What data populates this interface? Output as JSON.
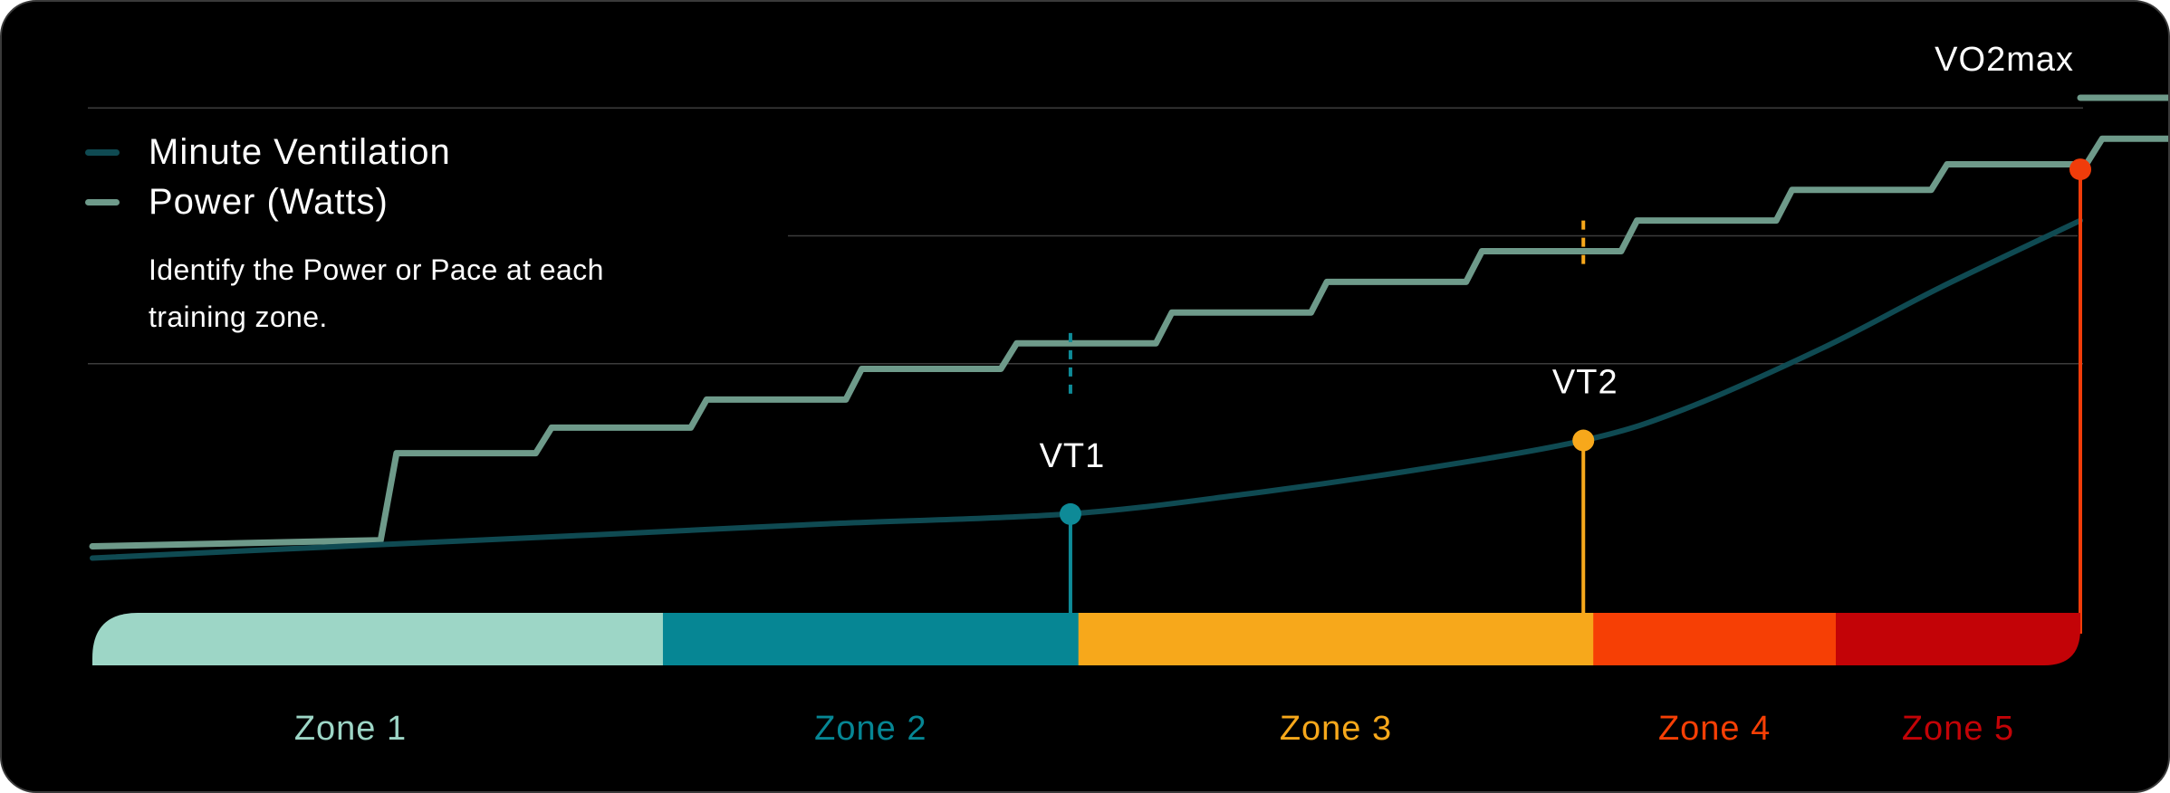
{
  "chart_data": {
    "type": "line",
    "title": "",
    "xlabel": "",
    "ylabel": "",
    "xlim": [
      0,
      100
    ],
    "ylim": [
      0,
      100
    ],
    "gridlines_y": [
      48,
      73,
      98
    ],
    "grid_partial_y": 73,
    "series": [
      {
        "name": "Minute Ventilation",
        "color": "#0f4a52",
        "points": [
          [
            0,
            10
          ],
          [
            12,
            12.2
          ],
          [
            25,
            14.5
          ],
          [
            37,
            16.7
          ],
          [
            49,
            18.6
          ],
          [
            58,
            22.5
          ],
          [
            67,
            27.5
          ],
          [
            75,
            33
          ],
          [
            80,
            39
          ],
          [
            87,
            51
          ],
          [
            93,
            63
          ],
          [
            100,
            76
          ]
        ]
      },
      {
        "name": "Power (Watts)",
        "color": "#6e9a8a",
        "step_width": 7.8,
        "steps": [
          13.5,
          30.5,
          35.5,
          41,
          47,
          52,
          58,
          64,
          70,
          76,
          82,
          87,
          92,
          96,
          100
        ],
        "tail_x": 100
      }
    ],
    "thresholds": [
      {
        "label": "VT1",
        "x": 49.2,
        "y": 18.6,
        "color": "#0e8a97",
        "dash_from": 41,
        "dash_to": 54
      },
      {
        "label": "VT2",
        "x": 75.0,
        "y": 33.0,
        "color": "#f7a81b",
        "dash_from": 67.5,
        "dash_to": 76
      },
      {
        "label": "VO2max",
        "x": 100,
        "y": 86,
        "color": "#f03c0a"
      }
    ],
    "zones": [
      {
        "label": "Zone 1",
        "from": 0,
        "to": 28.7,
        "color": "#9dd6c6"
      },
      {
        "label": "Zone 2",
        "from": 28.7,
        "to": 49.6,
        "color": "#068694"
      },
      {
        "label": "Zone 3",
        "from": 49.6,
        "to": 75.5,
        "color": "#f7a81b"
      },
      {
        "label": "Zone 4",
        "from": 75.5,
        "to": 87.7,
        "color": "#f63f05"
      },
      {
        "label": "Zone 5",
        "from": 87.7,
        "to": 100,
        "color": "#c30307"
      }
    ],
    "legend_position": "top-left"
  },
  "note": "Identify the Power or Pace at each training zone."
}
